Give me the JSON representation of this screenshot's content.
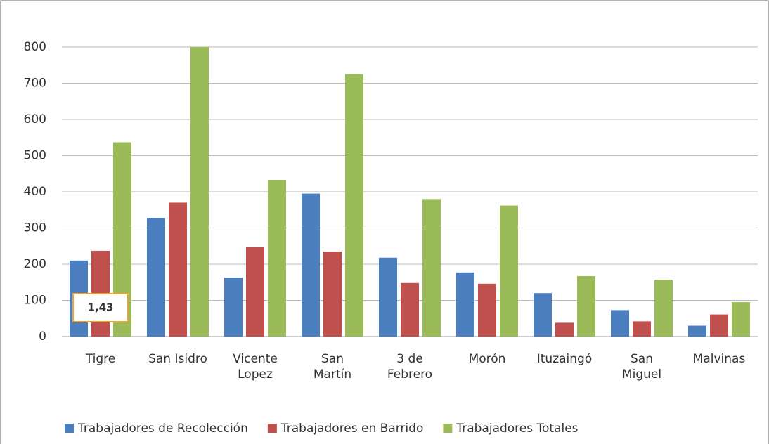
{
  "chart_data": {
    "type": "bar",
    "categories": [
      "Tigre",
      "San Isidro",
      "Vicente\nLopez",
      "San\nMartín",
      "3 de\nFebrero",
      "Morón",
      "Ituzaingó",
      "San\nMiguel",
      "Malvinas"
    ],
    "series": [
      {
        "name": "Trabajadores de Recolección",
        "color": "#4a7ebf",
        "values": [
          210,
          328,
          163,
          395,
          218,
          177,
          120,
          73,
          30
        ]
      },
      {
        "name": "Trabajadores en Barrido",
        "color": "#c0504d",
        "values": [
          237,
          370,
          247,
          235,
          148,
          146,
          38,
          42,
          61
        ]
      },
      {
        "name": "Trabajadores Totales",
        "color": "#9bbb59",
        "values": [
          537,
          800,
          433,
          725,
          380,
          362,
          167,
          157,
          95
        ]
      }
    ],
    "ylim": [
      0,
      800
    ],
    "yticks": [
      0,
      100,
      200,
      300,
      400,
      500,
      600,
      700,
      800
    ],
    "grid": true,
    "annotation": "1,43",
    "legend": "bottom"
  }
}
